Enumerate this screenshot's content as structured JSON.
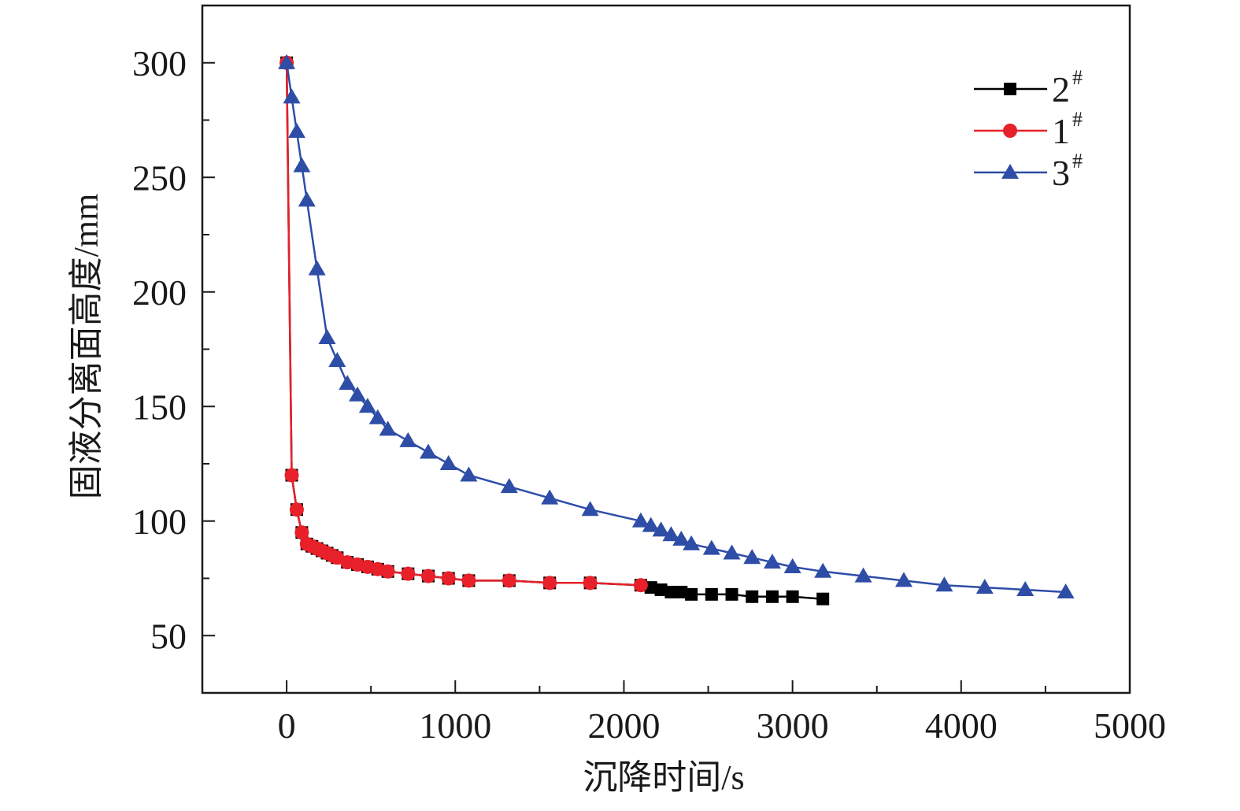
{
  "chart_data": {
    "type": "line",
    "xlabel": "沉降时间/s",
    "ylabel": "固液分离面高度/mm",
    "xlim": [
      -500,
      5000
    ],
    "ylim": [
      25,
      325
    ],
    "x_ticks": [
      0,
      1000,
      2000,
      3000,
      4000,
      5000
    ],
    "y_ticks": [
      50,
      100,
      150,
      200,
      250,
      300
    ],
    "grid": false,
    "legend_position": "top-right",
    "series": [
      {
        "name": "2",
        "name_superscript": "#",
        "color": "#000000",
        "marker": "square",
        "x": [
          0,
          30,
          60,
          90,
          120,
          150,
          180,
          210,
          240,
          270,
          300,
          360,
          420,
          480,
          540,
          600,
          720,
          840,
          960,
          1080,
          1320,
          1560,
          1800,
          2100,
          2160,
          2220,
          2280,
          2340,
          2400,
          2520,
          2640,
          2760,
          2880,
          3000,
          3180
        ],
        "y": [
          300,
          120,
          105,
          95,
          90,
          89,
          88,
          87,
          86,
          85,
          84,
          82,
          81,
          80,
          79,
          78,
          77,
          76,
          75,
          74,
          74,
          73,
          73,
          72,
          71,
          70,
          69,
          69,
          68,
          68,
          68,
          67,
          67,
          67,
          66
        ]
      },
      {
        "name": "1",
        "name_superscript": "#",
        "color": "#e8202a",
        "marker": "circle",
        "x": [
          0,
          30,
          60,
          90,
          120,
          150,
          180,
          210,
          240,
          270,
          300,
          360,
          420,
          480,
          540,
          600,
          720,
          840,
          960,
          1080,
          1320,
          1560,
          1800,
          2100
        ],
        "y": [
          300,
          120,
          105,
          95,
          90,
          89,
          88,
          87,
          86,
          85,
          84,
          82,
          81,
          80,
          79,
          78,
          77,
          76,
          75,
          74,
          74,
          73,
          73,
          72
        ]
      },
      {
        "name": "3",
        "name_superscript": "#",
        "color": "#2e4da6",
        "marker": "triangle",
        "x": [
          0,
          30,
          60,
          90,
          120,
          180,
          240,
          300,
          360,
          420,
          480,
          540,
          600,
          720,
          840,
          960,
          1080,
          1320,
          1560,
          1800,
          2100,
          2160,
          2220,
          2280,
          2340,
          2400,
          2520,
          2640,
          2760,
          2880,
          3000,
          3180,
          3420,
          3660,
          3900,
          4140,
          4380,
          4620
        ],
        "y": [
          300,
          285,
          270,
          255,
          240,
          210,
          180,
          170,
          160,
          155,
          150,
          145,
          140,
          135,
          130,
          125,
          120,
          115,
          110,
          105,
          100,
          98,
          96,
          94,
          92,
          90,
          88,
          86,
          84,
          82,
          80,
          78,
          76,
          74,
          72,
          71,
          70,
          69
        ]
      }
    ]
  }
}
